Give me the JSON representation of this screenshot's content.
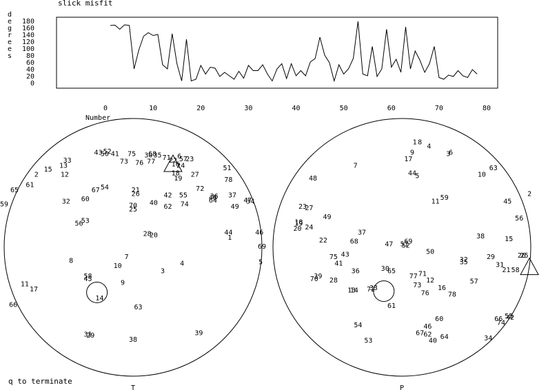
{
  "header": {
    "title": "slick misfit"
  },
  "footer": {
    "hint": "q to terminate"
  },
  "chart_data": [
    {
      "type": "line",
      "title": "slick misfit",
      "ylabel": "degrees",
      "xlabel": "Number",
      "xlim": [
        0,
        80
      ],
      "ylim": [
        0,
        180
      ],
      "xticks": [
        "0",
        "10",
        "20",
        "30",
        "40",
        "50",
        "60",
        "70",
        "80"
      ],
      "yticks": [
        "180",
        "160",
        "140",
        "120",
        "100",
        "80",
        "60",
        "40",
        "20",
        "0"
      ],
      "x": [
        1,
        2,
        3,
        4,
        5,
        6,
        7,
        8,
        9,
        10,
        11,
        12,
        13,
        14,
        15,
        16,
        17,
        18,
        19,
        20,
        21,
        22,
        23,
        24,
        25,
        26,
        27,
        28,
        29,
        30,
        31,
        32,
        33,
        34,
        35,
        36,
        37,
        38,
        39,
        40,
        41,
        42,
        43,
        44,
        45,
        46,
        47,
        48,
        49,
        50,
        51,
        52,
        53,
        54,
        55,
        56,
        57,
        58,
        59,
        60,
        61,
        62,
        63,
        64,
        65,
        66,
        67,
        68,
        69,
        70,
        71,
        72,
        73,
        74,
        75,
        76,
        77,
        78
      ],
      "values": [
        166,
        167,
        155,
        168,
        166,
        40,
        95,
        135,
        145,
        137,
        140,
        52,
        40,
        142,
        55,
        5,
        126,
        5,
        10,
        50,
        25,
        45,
        42,
        18,
        30,
        20,
        10,
        33,
        13,
        50,
        35,
        35,
        52,
        25,
        5,
        40,
        55,
        12,
        55,
        20,
        35,
        20,
        60,
        70,
        132,
        80,
        58,
        5,
        52,
        25,
        40,
        70,
        178,
        25,
        20,
        105,
        18,
        40,
        155,
        45,
        68,
        30,
        162,
        40,
        92,
        65,
        30,
        55,
        105,
        15,
        10,
        22,
        18,
        35,
        20,
        15,
        38,
        25
      ]
    },
    {
      "type": "scatter",
      "name": "stereonet",
      "label": "T",
      "points": [
        {
          "l": "1",
          "x": 0.75,
          "y": 0.08
        },
        {
          "l": "2",
          "x": -0.75,
          "y": 0.57
        },
        {
          "l": "3",
          "x": 0.23,
          "y": -0.18
        },
        {
          "l": "4",
          "x": 0.38,
          "y": -0.12
        },
        {
          "l": "5",
          "x": 0.99,
          "y": -0.11
        },
        {
          "l": "6",
          "x": 0.36,
          "y": 0.71
        },
        {
          "l": "7",
          "x": -0.05,
          "y": -0.07
        },
        {
          "l": "8",
          "x": -0.48,
          "y": -0.1
        },
        {
          "l": "9",
          "x": -0.08,
          "y": -0.27
        },
        {
          "l": "10",
          "x": -0.12,
          "y": -0.14
        },
        {
          "l": "11",
          "x": -0.84,
          "y": -0.28
        },
        {
          "l": "12",
          "x": -0.53,
          "y": 0.57
        },
        {
          "l": "13",
          "x": -0.54,
          "y": 0.64
        },
        {
          "l": "14",
          "x": -0.26,
          "y": -0.39
        },
        {
          "l": "15",
          "x": -0.66,
          "y": 0.61
        },
        {
          "l": "16",
          "x": 0.33,
          "y": 0.65
        },
        {
          "l": "17",
          "x": -0.77,
          "y": -0.32
        },
        {
          "l": "18",
          "x": 0.33,
          "y": 0.58
        },
        {
          "l": "19",
          "x": 0.35,
          "y": 0.54
        },
        {
          "l": "20",
          "x": 0.16,
          "y": 0.1
        },
        {
          "l": "21",
          "x": 0.02,
          "y": 0.45
        },
        {
          "l": "22",
          "x": 0.31,
          "y": 0.68
        },
        {
          "l": "23",
          "x": 0.44,
          "y": 0.69
        },
        {
          "l": "24",
          "x": 0.37,
          "y": 0.64
        },
        {
          "l": "25",
          "x": 0.0,
          "y": 0.3
        },
        {
          "l": "26",
          "x": 0.02,
          "y": 0.42
        },
        {
          "l": "27",
          "x": 0.48,
          "y": 0.57
        },
        {
          "l": "28",
          "x": 0.11,
          "y": 0.11
        },
        {
          "l": "29",
          "x": -0.33,
          "y": -0.68
        },
        {
          "l": "30",
          "x": 0.12,
          "y": 0.72
        },
        {
          "l": "31",
          "x": -0.35,
          "y": -0.67
        },
        {
          "l": "32",
          "x": -0.52,
          "y": 0.36
        },
        {
          "l": "33",
          "x": -0.51,
          "y": 0.68
        },
        {
          "l": "34",
          "x": 0.91,
          "y": 0.36
        },
        {
          "l": "35",
          "x": 0.19,
          "y": 0.72
        },
        {
          "l": "36",
          "x": 0.63,
          "y": 0.4
        },
        {
          "l": "37",
          "x": 0.77,
          "y": 0.41
        },
        {
          "l": "38",
          "x": 0.0,
          "y": -0.71
        },
        {
          "l": "39",
          "x": 0.51,
          "y": -0.66
        },
        {
          "l": "40",
          "x": 0.16,
          "y": 0.35
        },
        {
          "l": "41",
          "x": -0.14,
          "y": 0.73
        },
        {
          "l": "42",
          "x": 0.27,
          "y": 0.41
        },
        {
          "l": "43",
          "x": -0.27,
          "y": 0.74
        },
        {
          "l": "44",
          "x": 0.74,
          "y": 0.12
        },
        {
          "l": "45",
          "x": -0.35,
          "y": -0.24
        },
        {
          "l": "46",
          "x": 0.98,
          "y": 0.12
        },
        {
          "l": "47",
          "x": 0.89,
          "y": 0.37
        },
        {
          "l": "48",
          "x": 0.62,
          "y": 0.39
        },
        {
          "l": "49",
          "x": 0.79,
          "y": 0.32
        },
        {
          "l": "50",
          "x": -0.22,
          "y": 0.73
        },
        {
          "l": "51",
          "x": 0.73,
          "y": 0.62
        },
        {
          "l": "52",
          "x": -0.2,
          "y": 0.75
        },
        {
          "l": "53",
          "x": -0.37,
          "y": 0.21
        },
        {
          "l": "54",
          "x": -0.22,
          "y": 0.47
        },
        {
          "l": "55",
          "x": 0.39,
          "y": 0.41
        },
        {
          "l": "56",
          "x": -0.42,
          "y": 0.19
        },
        {
          "l": "57",
          "x": 0.39,
          "y": 0.69
        },
        {
          "l": "58",
          "x": -0.35,
          "y": -0.22
        },
        {
          "l": "59",
          "x": -1.0,
          "y": 0.34
        },
        {
          "l": "60",
          "x": -0.37,
          "y": 0.38
        },
        {
          "l": "61",
          "x": -0.8,
          "y": 0.49
        },
        {
          "l": "62",
          "x": 0.27,
          "y": 0.32
        },
        {
          "l": "63",
          "x": 0.04,
          "y": -0.46
        },
        {
          "l": "64",
          "x": 0.62,
          "y": 0.37
        },
        {
          "l": "65",
          "x": -0.92,
          "y": 0.45
        },
        {
          "l": "66",
          "x": -0.93,
          "y": -0.44
        },
        {
          "l": "67",
          "x": -0.29,
          "y": 0.45
        },
        {
          "l": "68",
          "x": 0.15,
          "y": 0.73
        },
        {
          "l": "69",
          "x": 1.0,
          "y": 0.01
        },
        {
          "l": "70",
          "x": 0.0,
          "y": 0.33
        },
        {
          "l": "71",
          "x": 0.26,
          "y": 0.7
        },
        {
          "l": "72",
          "x": 0.52,
          "y": 0.46
        },
        {
          "l": "73",
          "x": -0.07,
          "y": 0.67
        },
        {
          "l": "74",
          "x": 0.4,
          "y": 0.34
        },
        {
          "l": "75",
          "x": -0.01,
          "y": 0.73
        },
        {
          "l": "76",
          "x": 0.05,
          "y": 0.66
        },
        {
          "l": "77",
          "x": 0.14,
          "y": 0.67
        },
        {
          "l": "78",
          "x": 0.74,
          "y": 0.53
        }
      ],
      "markers": {
        "circle": {
          "x": -0.28,
          "y": -0.35
        },
        "triangle": {
          "x": 0.31,
          "y": 0.62
        }
      }
    },
    {
      "type": "scatter",
      "name": "stereonet",
      "label": "P",
      "points": [
        {
          "l": "1",
          "x": 0.1,
          "y": 0.82
        },
        {
          "l": "2",
          "x": 0.99,
          "y": 0.42
        },
        {
          "l": "3",
          "x": 0.36,
          "y": 0.73
        },
        {
          "l": "4",
          "x": 0.21,
          "y": 0.79
        },
        {
          "l": "5",
          "x": 0.12,
          "y": 0.56
        },
        {
          "l": "6",
          "x": 0.38,
          "y": 0.74
        },
        {
          "l": "7",
          "x": -0.36,
          "y": 0.64
        },
        {
          "l": "8",
          "x": 0.14,
          "y": 0.82
        },
        {
          "l": "9",
          "x": 0.08,
          "y": 0.74
        },
        {
          "l": "10",
          "x": 0.62,
          "y": 0.57
        },
        {
          "l": "11",
          "x": 0.26,
          "y": 0.36
        },
        {
          "l": "12",
          "x": 0.22,
          "y": -0.25
        },
        {
          "l": "13",
          "x": -0.39,
          "y": -0.33
        },
        {
          "l": "14",
          "x": -0.37,
          "y": -0.33
        },
        {
          "l": "15",
          "x": 0.83,
          "y": 0.07
        },
        {
          "l": "16",
          "x": 0.31,
          "y": -0.31
        },
        {
          "l": "17",
          "x": 0.05,
          "y": 0.69
        },
        {
          "l": "18",
          "x": -0.8,
          "y": 0.2
        },
        {
          "l": "19",
          "x": -0.8,
          "y": 0.19
        },
        {
          "l": "20",
          "x": -0.81,
          "y": 0.15
        },
        {
          "l": "21",
          "x": 0.81,
          "y": -0.17
        },
        {
          "l": "22",
          "x": -0.61,
          "y": 0.06
        },
        {
          "l": "23",
          "x": -0.77,
          "y": 0.32
        },
        {
          "l": "24",
          "x": -0.72,
          "y": 0.16
        },
        {
          "l": "25",
          "x": 0.95,
          "y": -0.06
        },
        {
          "l": "26",
          "x": 0.93,
          "y": -0.06
        },
        {
          "l": "27",
          "x": -0.72,
          "y": 0.31
        },
        {
          "l": "28",
          "x": -0.53,
          "y": -0.25
        },
        {
          "l": "29",
          "x": 0.69,
          "y": -0.07
        },
        {
          "l": "30",
          "x": -0.13,
          "y": -0.16
        },
        {
          "l": "31",
          "x": 0.76,
          "y": -0.13
        },
        {
          "l": "32",
          "x": 0.48,
          "y": -0.09
        },
        {
          "l": "33",
          "x": -0.22,
          "y": -0.31
        },
        {
          "l": "34",
          "x": 0.67,
          "y": -0.7
        },
        {
          "l": "35",
          "x": 0.48,
          "y": -0.11
        },
        {
          "l": "36",
          "x": -0.36,
          "y": -0.18
        },
        {
          "l": "37",
          "x": -0.31,
          "y": 0.12
        },
        {
          "l": "38",
          "x": 0.61,
          "y": 0.09
        },
        {
          "l": "39",
          "x": -0.65,
          "y": -0.22
        },
        {
          "l": "40",
          "x": 0.24,
          "y": -0.72
        },
        {
          "l": "41",
          "x": -0.49,
          "y": -0.12
        },
        {
          "l": "42",
          "x": 0.84,
          "y": -0.54
        },
        {
          "l": "43",
          "x": -0.44,
          "y": -0.05
        },
        {
          "l": "44",
          "x": 0.08,
          "y": 0.58
        },
        {
          "l": "45",
          "x": 0.82,
          "y": 0.36
        },
        {
          "l": "46",
          "x": 0.2,
          "y": -0.61
        },
        {
          "l": "47",
          "x": -0.1,
          "y": 0.03
        },
        {
          "l": "48",
          "x": -0.69,
          "y": 0.54
        },
        {
          "l": "49",
          "x": -0.58,
          "y": 0.24
        },
        {
          "l": "50",
          "x": 0.22,
          "y": -0.03
        },
        {
          "l": "51",
          "x": 0.02,
          "y": 0.03
        },
        {
          "l": "52",
          "x": 0.03,
          "y": 0.02
        },
        {
          "l": "53",
          "x": -0.26,
          "y": -0.72
        },
        {
          "l": "54",
          "x": -0.34,
          "y": -0.6
        },
        {
          "l": "55",
          "x": 0.83,
          "y": -0.53
        },
        {
          "l": "56",
          "x": 0.91,
          "y": 0.23
        },
        {
          "l": "57",
          "x": 0.56,
          "y": -0.26
        },
        {
          "l": "58",
          "x": 0.88,
          "y": -0.17
        },
        {
          "l": "59",
          "x": 0.33,
          "y": 0.39
        },
        {
          "l": "60",
          "x": 0.29,
          "y": -0.55
        },
        {
          "l": "61",
          "x": -0.08,
          "y": -0.45
        },
        {
          "l": "62",
          "x": 0.2,
          "y": -0.67
        },
        {
          "l": "63",
          "x": 0.71,
          "y": 0.62
        },
        {
          "l": "64",
          "x": 0.33,
          "y": -0.69
        },
        {
          "l": "65",
          "x": -0.08,
          "y": -0.18
        },
        {
          "l": "66",
          "x": 0.75,
          "y": -0.55
        },
        {
          "l": "67",
          "x": 0.14,
          "y": -0.66
        },
        {
          "l": "68",
          "x": -0.37,
          "y": 0.05
        },
        {
          "l": "69",
          "x": 0.05,
          "y": 0.05
        },
        {
          "l": "70",
          "x": -0.68,
          "y": -0.24
        },
        {
          "l": "71",
          "x": 0.16,
          "y": -0.2
        },
        {
          "l": "72",
          "x": -0.24,
          "y": -0.32
        },
        {
          "l": "73",
          "x": 0.12,
          "y": -0.29
        },
        {
          "l": "74",
          "x": 0.77,
          "y": -0.58
        },
        {
          "l": "75",
          "x": -0.53,
          "y": -0.07
        },
        {
          "l": "76",
          "x": 0.18,
          "y": -0.35
        },
        {
          "l": "77",
          "x": 0.09,
          "y": -0.22
        },
        {
          "l": "78",
          "x": 0.39,
          "y": -0.36
        }
      ],
      "markers": {
        "circle": {
          "x": -0.14,
          "y": -0.34
        },
        "triangle": {
          "x": 0.99,
          "y": -0.18
        }
      }
    }
  ]
}
